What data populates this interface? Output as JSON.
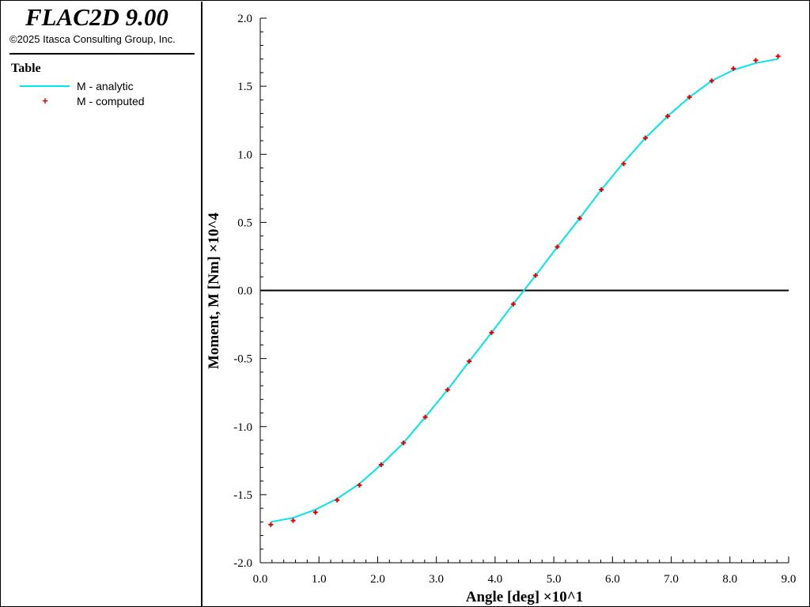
{
  "app": {
    "title": "FLAC2D 9.00",
    "copyright": "©2025 Itasca Consulting Group, Inc."
  },
  "legend": {
    "heading": "Table",
    "items": [
      {
        "label": "M - analytic",
        "kind": "line",
        "color": "#00e5f0"
      },
      {
        "label": "M - computed",
        "kind": "marker",
        "color": "#e00000"
      }
    ]
  },
  "chart_data": {
    "type": "line",
    "xlabel": "Angle [deg] ×10^1",
    "ylabel": "Moment, M [Nm] ×10^4",
    "xlim": [
      0,
      9
    ],
    "ylim": [
      -2,
      2
    ],
    "xticks": [
      "0.0",
      "1.0",
      "2.0",
      "3.0",
      "4.0",
      "5.0",
      "6.0",
      "7.0",
      "8.0",
      "9.0"
    ],
    "yticks": [
      "2.0",
      "1.5",
      "1.0",
      "0.5",
      "0.0",
      "-0.5",
      "-1.0",
      "-1.5",
      "-2.0"
    ],
    "grid": false,
    "zero_line": true,
    "series": [
      {
        "name": "M - analytic",
        "color": "#00e5f0",
        "style": "line",
        "x": [
          0.18,
          0.56,
          0.94,
          1.31,
          1.69,
          2.06,
          2.44,
          2.81,
          3.19,
          3.56,
          3.94,
          4.31,
          4.69,
          5.06,
          5.44,
          5.81,
          6.19,
          6.56,
          6.94,
          7.31,
          7.69,
          8.06,
          8.44,
          8.82
        ],
        "y": [
          -1.7,
          -1.67,
          -1.61,
          -1.53,
          -1.42,
          -1.28,
          -1.12,
          -0.93,
          -0.73,
          -0.52,
          -0.31,
          -0.1,
          0.11,
          0.32,
          0.53,
          0.74,
          0.94,
          1.12,
          1.28,
          1.42,
          1.54,
          1.62,
          1.67,
          1.7
        ]
      },
      {
        "name": "M - computed",
        "color": "#e00000",
        "style": "marker",
        "x": [
          0.18,
          0.56,
          0.94,
          1.31,
          1.69,
          2.06,
          2.44,
          2.81,
          3.19,
          3.56,
          3.94,
          4.31,
          4.69,
          5.06,
          5.44,
          5.81,
          6.19,
          6.56,
          6.94,
          7.31,
          7.69,
          8.06,
          8.44,
          8.82
        ],
        "y": [
          -1.72,
          -1.69,
          -1.63,
          -1.54,
          -1.43,
          -1.28,
          -1.12,
          -0.93,
          -0.73,
          -0.52,
          -0.31,
          -0.1,
          0.11,
          0.32,
          0.53,
          0.74,
          0.93,
          1.12,
          1.28,
          1.42,
          1.54,
          1.63,
          1.69,
          1.72
        ]
      }
    ]
  }
}
